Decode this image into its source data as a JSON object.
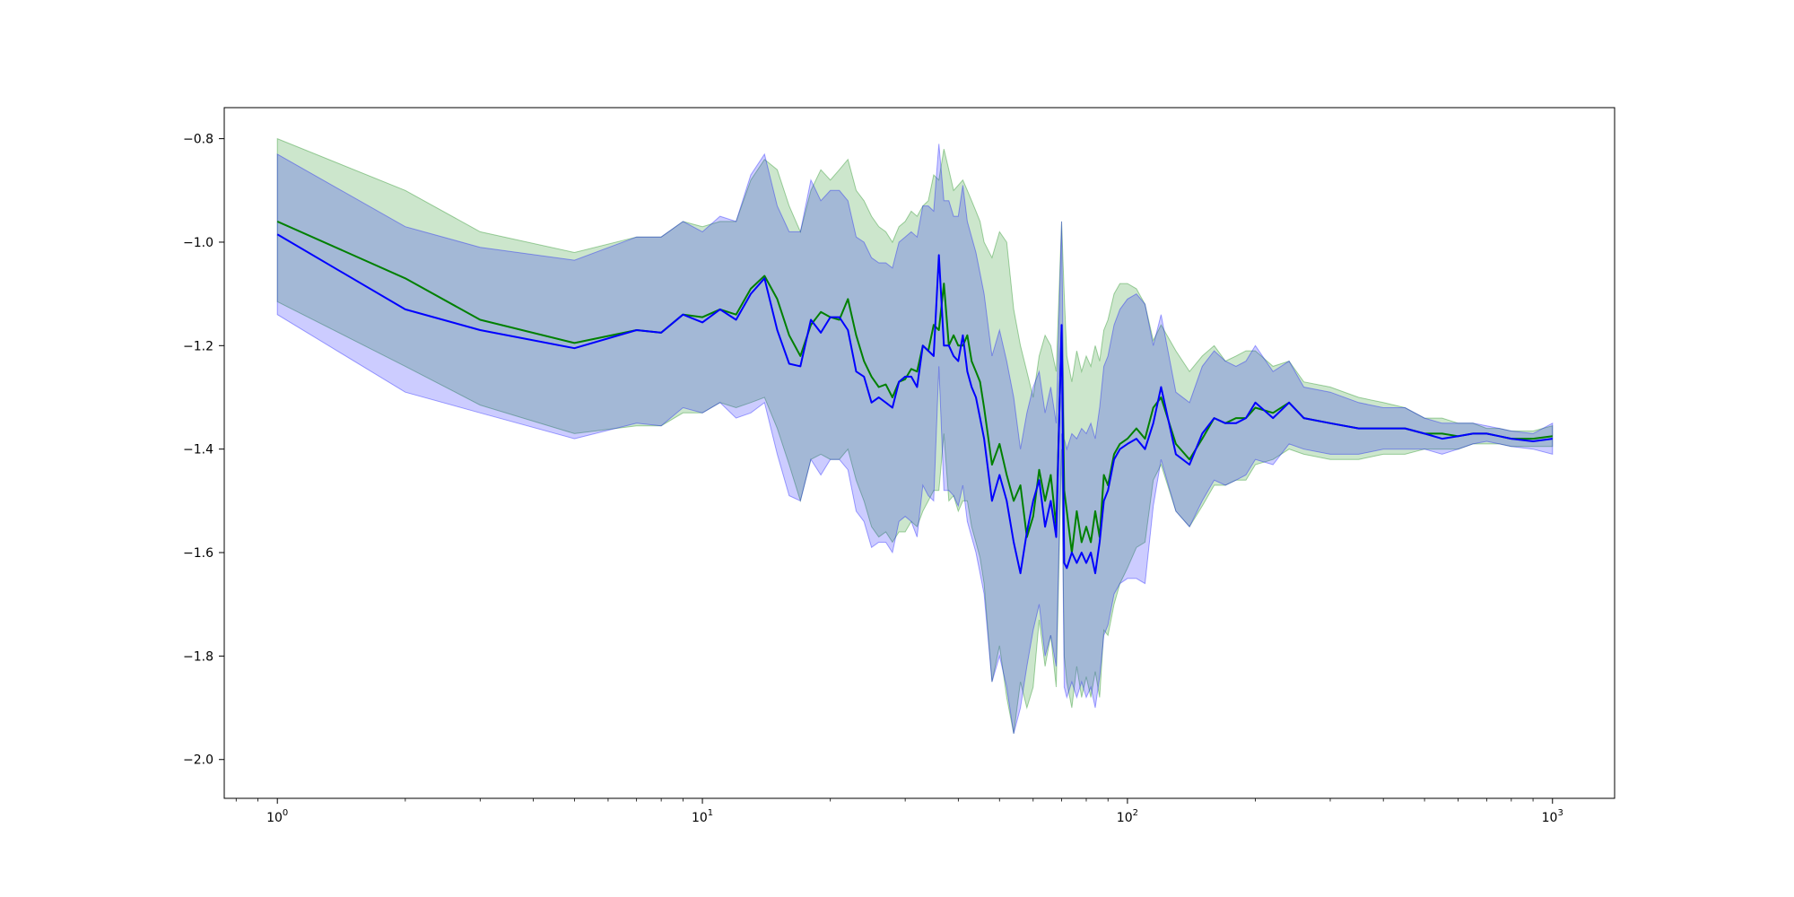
{
  "chart_data": {
    "type": "line",
    "title": "",
    "xlabel": "",
    "ylabel": "",
    "xscale": "log",
    "xlim": [
      0.75,
      1400
    ],
    "ylim": [
      -2.075,
      -0.74
    ],
    "grid": false,
    "legend": "none",
    "x_ticks": [
      {
        "value": 1,
        "base": "10",
        "exp": "0"
      },
      {
        "value": 10,
        "base": "10",
        "exp": "1"
      },
      {
        "value": 100,
        "base": "10",
        "exp": "2"
      },
      {
        "value": 1000,
        "base": "10",
        "exp": "3"
      }
    ],
    "y_ticks": [
      {
        "value": -0.8,
        "label": "−0.8"
      },
      {
        "value": -1.0,
        "label": "−1.0"
      },
      {
        "value": -1.2,
        "label": "−1.2"
      },
      {
        "value": -1.4,
        "label": "−1.4"
      },
      {
        "value": -1.6,
        "label": "−1.6"
      },
      {
        "value": -1.8,
        "label": "−1.8"
      },
      {
        "value": -2.0,
        "label": "−2.0"
      }
    ],
    "colors": {
      "green_line": "#008000",
      "green_band": "#008000",
      "blue_line": "#0000ff",
      "blue_band": "#0000ff"
    },
    "series": [
      {
        "color": "green",
        "x": [
          1,
          2,
          3,
          5,
          7,
          8,
          9,
          10,
          11,
          12,
          13,
          14,
          15,
          16,
          17,
          18,
          19,
          20,
          21,
          22,
          23,
          24,
          25,
          26,
          27,
          28,
          29,
          30,
          31,
          32,
          33,
          34,
          35,
          36,
          37,
          38,
          39,
          40,
          41,
          42,
          43,
          44,
          45,
          46,
          48,
          50,
          52,
          54,
          56,
          58,
          60,
          62,
          64,
          66,
          68,
          70,
          71,
          72,
          74,
          76,
          78,
          80,
          82,
          84,
          86,
          88,
          90,
          93,
          96,
          100,
          105,
          110,
          115,
          120,
          130,
          140,
          150,
          160,
          170,
          180,
          190,
          200,
          220,
          240,
          260,
          300,
          350,
          400,
          450,
          500,
          550,
          600,
          650,
          700,
          750,
          800,
          900,
          1000
        ],
        "y": [
          -0.96,
          -1.07,
          -1.15,
          -1.195,
          -1.17,
          -1.175,
          -1.14,
          -1.145,
          -1.13,
          -1.14,
          -1.09,
          -1.065,
          -1.11,
          -1.18,
          -1.22,
          -1.16,
          -1.135,
          -1.145,
          -1.15,
          -1.11,
          -1.18,
          -1.23,
          -1.26,
          -1.28,
          -1.275,
          -1.3,
          -1.27,
          -1.265,
          -1.245,
          -1.25,
          -1.2,
          -1.21,
          -1.16,
          -1.17,
          -1.08,
          -1.2,
          -1.18,
          -1.2,
          -1.2,
          -1.18,
          -1.23,
          -1.25,
          -1.27,
          -1.32,
          -1.43,
          -1.39,
          -1.45,
          -1.5,
          -1.47,
          -1.57,
          -1.53,
          -1.44,
          -1.5,
          -1.45,
          -1.55,
          -1.17,
          -1.48,
          -1.52,
          -1.6,
          -1.52,
          -1.58,
          -1.55,
          -1.58,
          -1.52,
          -1.57,
          -1.45,
          -1.47,
          -1.41,
          -1.39,
          -1.38,
          -1.36,
          -1.38,
          -1.32,
          -1.3,
          -1.39,
          -1.42,
          -1.38,
          -1.34,
          -1.35,
          -1.34,
          -1.34,
          -1.32,
          -1.33,
          -1.31,
          -1.34,
          -1.35,
          -1.36,
          -1.36,
          -1.36,
          -1.37,
          -1.37,
          -1.375,
          -1.37,
          -1.37,
          -1.375,
          -1.38,
          -1.38,
          -1.375
        ],
        "upper": [
          -0.8,
          -0.9,
          -0.98,
          -1.02,
          -0.99,
          -0.99,
          -0.96,
          -0.97,
          -0.96,
          -0.96,
          -0.88,
          -0.84,
          -0.86,
          -0.93,
          -0.98,
          -0.9,
          -0.86,
          -0.88,
          -0.86,
          -0.84,
          -0.9,
          -0.92,
          -0.95,
          -0.97,
          -0.98,
          -1.0,
          -0.97,
          -0.96,
          -0.94,
          -0.95,
          -0.93,
          -0.92,
          -0.87,
          -0.88,
          -0.82,
          -0.86,
          -0.9,
          -0.89,
          -0.88,
          -0.9,
          -0.92,
          -0.94,
          -0.96,
          -1.0,
          -1.03,
          -0.98,
          -1.0,
          -1.13,
          -1.2,
          -1.25,
          -1.3,
          -1.22,
          -1.18,
          -1.2,
          -1.25,
          -0.96,
          -1.1,
          -1.22,
          -1.27,
          -1.21,
          -1.25,
          -1.22,
          -1.24,
          -1.2,
          -1.23,
          -1.17,
          -1.15,
          -1.1,
          -1.08,
          -1.08,
          -1.09,
          -1.12,
          -1.19,
          -1.16,
          -1.21,
          -1.25,
          -1.22,
          -1.2,
          -1.23,
          -1.22,
          -1.21,
          -1.21,
          -1.24,
          -1.23,
          -1.27,
          -1.28,
          -1.3,
          -1.31,
          -1.32,
          -1.34,
          -1.34,
          -1.35,
          -1.35,
          -1.36,
          -1.36,
          -1.365,
          -1.365,
          -1.355
        ],
        "lower": [
          -1.115,
          -1.24,
          -1.315,
          -1.37,
          -1.355,
          -1.355,
          -1.33,
          -1.33,
          -1.31,
          -1.32,
          -1.31,
          -1.3,
          -1.36,
          -1.43,
          -1.5,
          -1.42,
          -1.41,
          -1.42,
          -1.42,
          -1.4,
          -1.46,
          -1.5,
          -1.55,
          -1.57,
          -1.56,
          -1.58,
          -1.56,
          -1.56,
          -1.54,
          -1.55,
          -1.52,
          -1.5,
          -1.48,
          -1.48,
          -1.37,
          -1.5,
          -1.49,
          -1.52,
          -1.5,
          -1.5,
          -1.55,
          -1.58,
          -1.61,
          -1.66,
          -1.85,
          -1.78,
          -1.88,
          -1.95,
          -1.85,
          -1.9,
          -1.86,
          -1.73,
          -1.82,
          -1.76,
          -1.86,
          -1.4,
          -1.8,
          -1.85,
          -1.9,
          -1.82,
          -1.88,
          -1.84,
          -1.88,
          -1.83,
          -1.88,
          -1.75,
          -1.76,
          -1.7,
          -1.66,
          -1.63,
          -1.59,
          -1.58,
          -1.46,
          -1.43,
          -1.52,
          -1.55,
          -1.51,
          -1.47,
          -1.47,
          -1.46,
          -1.46,
          -1.43,
          -1.42,
          -1.4,
          -1.41,
          -1.42,
          -1.42,
          -1.41,
          -1.41,
          -1.4,
          -1.4,
          -1.4,
          -1.39,
          -1.39,
          -1.39,
          -1.395,
          -1.395,
          -1.395
        ]
      },
      {
        "color": "blue",
        "x": [
          1,
          2,
          3,
          5,
          7,
          8,
          9,
          10,
          11,
          12,
          13,
          14,
          15,
          16,
          17,
          18,
          19,
          20,
          21,
          22,
          23,
          24,
          25,
          26,
          27,
          28,
          29,
          30,
          31,
          32,
          33,
          34,
          35,
          36,
          37,
          38,
          39,
          40,
          41,
          42,
          43,
          44,
          45,
          46,
          48,
          50,
          52,
          54,
          56,
          58,
          60,
          62,
          64,
          66,
          68,
          70,
          71,
          72,
          74,
          76,
          78,
          80,
          82,
          84,
          86,
          88,
          90,
          93,
          96,
          100,
          105,
          110,
          115,
          120,
          130,
          140,
          150,
          160,
          170,
          180,
          190,
          200,
          220,
          240,
          260,
          300,
          350,
          400,
          450,
          500,
          550,
          600,
          650,
          700,
          750,
          800,
          900,
          1000
        ],
        "y": [
          -0.985,
          -1.13,
          -1.17,
          -1.205,
          -1.17,
          -1.175,
          -1.14,
          -1.155,
          -1.13,
          -1.15,
          -1.1,
          -1.07,
          -1.17,
          -1.235,
          -1.24,
          -1.15,
          -1.175,
          -1.145,
          -1.145,
          -1.17,
          -1.25,
          -1.26,
          -1.31,
          -1.3,
          -1.31,
          -1.32,
          -1.27,
          -1.26,
          -1.26,
          -1.28,
          -1.2,
          -1.21,
          -1.22,
          -1.025,
          -1.2,
          -1.2,
          -1.22,
          -1.23,
          -1.18,
          -1.25,
          -1.28,
          -1.3,
          -1.34,
          -1.38,
          -1.5,
          -1.45,
          -1.5,
          -1.58,
          -1.64,
          -1.56,
          -1.5,
          -1.46,
          -1.55,
          -1.5,
          -1.57,
          -1.16,
          -1.62,
          -1.63,
          -1.6,
          -1.62,
          -1.6,
          -1.62,
          -1.6,
          -1.64,
          -1.58,
          -1.5,
          -1.48,
          -1.42,
          -1.4,
          -1.39,
          -1.38,
          -1.4,
          -1.35,
          -1.28,
          -1.41,
          -1.43,
          -1.37,
          -1.34,
          -1.35,
          -1.35,
          -1.34,
          -1.31,
          -1.34,
          -1.31,
          -1.34,
          -1.35,
          -1.36,
          -1.36,
          -1.36,
          -1.37,
          -1.38,
          -1.375,
          -1.37,
          -1.37,
          -1.375,
          -1.38,
          -1.385,
          -1.38
        ],
        "upper": [
          -0.83,
          -0.97,
          -1.01,
          -1.035,
          -0.99,
          -0.99,
          -0.96,
          -0.98,
          -0.95,
          -0.96,
          -0.87,
          -0.83,
          -0.93,
          -0.98,
          -0.98,
          -0.88,
          -0.92,
          -0.9,
          -0.9,
          -0.92,
          -0.99,
          -1.0,
          -1.03,
          -1.04,
          -1.04,
          -1.05,
          -1.0,
          -0.99,
          -0.98,
          -0.99,
          -0.93,
          -0.93,
          -0.94,
          -0.81,
          -0.92,
          -0.92,
          -0.95,
          -0.95,
          -0.89,
          -0.96,
          -0.99,
          -1.02,
          -1.06,
          -1.1,
          -1.22,
          -1.17,
          -1.23,
          -1.3,
          -1.4,
          -1.33,
          -1.28,
          -1.25,
          -1.33,
          -1.28,
          -1.35,
          -0.96,
          -1.38,
          -1.4,
          -1.37,
          -1.38,
          -1.36,
          -1.37,
          -1.35,
          -1.38,
          -1.32,
          -1.24,
          -1.22,
          -1.16,
          -1.13,
          -1.11,
          -1.1,
          -1.12,
          -1.2,
          -1.14,
          -1.29,
          -1.31,
          -1.24,
          -1.21,
          -1.23,
          -1.24,
          -1.23,
          -1.2,
          -1.25,
          -1.23,
          -1.28,
          -1.29,
          -1.31,
          -1.32,
          -1.32,
          -1.34,
          -1.35,
          -1.35,
          -1.35,
          -1.355,
          -1.36,
          -1.365,
          -1.37,
          -1.35
        ],
        "lower": [
          -1.14,
          -1.29,
          -1.33,
          -1.38,
          -1.35,
          -1.355,
          -1.32,
          -1.33,
          -1.31,
          -1.34,
          -1.33,
          -1.31,
          -1.41,
          -1.49,
          -1.5,
          -1.42,
          -1.45,
          -1.42,
          -1.42,
          -1.44,
          -1.52,
          -1.54,
          -1.59,
          -1.58,
          -1.58,
          -1.6,
          -1.54,
          -1.53,
          -1.54,
          -1.57,
          -1.47,
          -1.49,
          -1.5,
          -1.24,
          -1.48,
          -1.48,
          -1.49,
          -1.51,
          -1.47,
          -1.54,
          -1.57,
          -1.6,
          -1.64,
          -1.68,
          -1.85,
          -1.8,
          -1.86,
          -1.95,
          -1.9,
          -1.82,
          -1.75,
          -1.7,
          -1.8,
          -1.76,
          -1.82,
          -1.37,
          -1.86,
          -1.88,
          -1.85,
          -1.88,
          -1.85,
          -1.88,
          -1.86,
          -1.9,
          -1.84,
          -1.76,
          -1.74,
          -1.68,
          -1.66,
          -1.65,
          -1.65,
          -1.66,
          -1.51,
          -1.42,
          -1.52,
          -1.55,
          -1.5,
          -1.46,
          -1.47,
          -1.46,
          -1.45,
          -1.42,
          -1.43,
          -1.39,
          -1.4,
          -1.41,
          -1.41,
          -1.4,
          -1.4,
          -1.4,
          -1.41,
          -1.4,
          -1.39,
          -1.385,
          -1.39,
          -1.395,
          -1.4,
          -1.41
        ]
      }
    ]
  }
}
